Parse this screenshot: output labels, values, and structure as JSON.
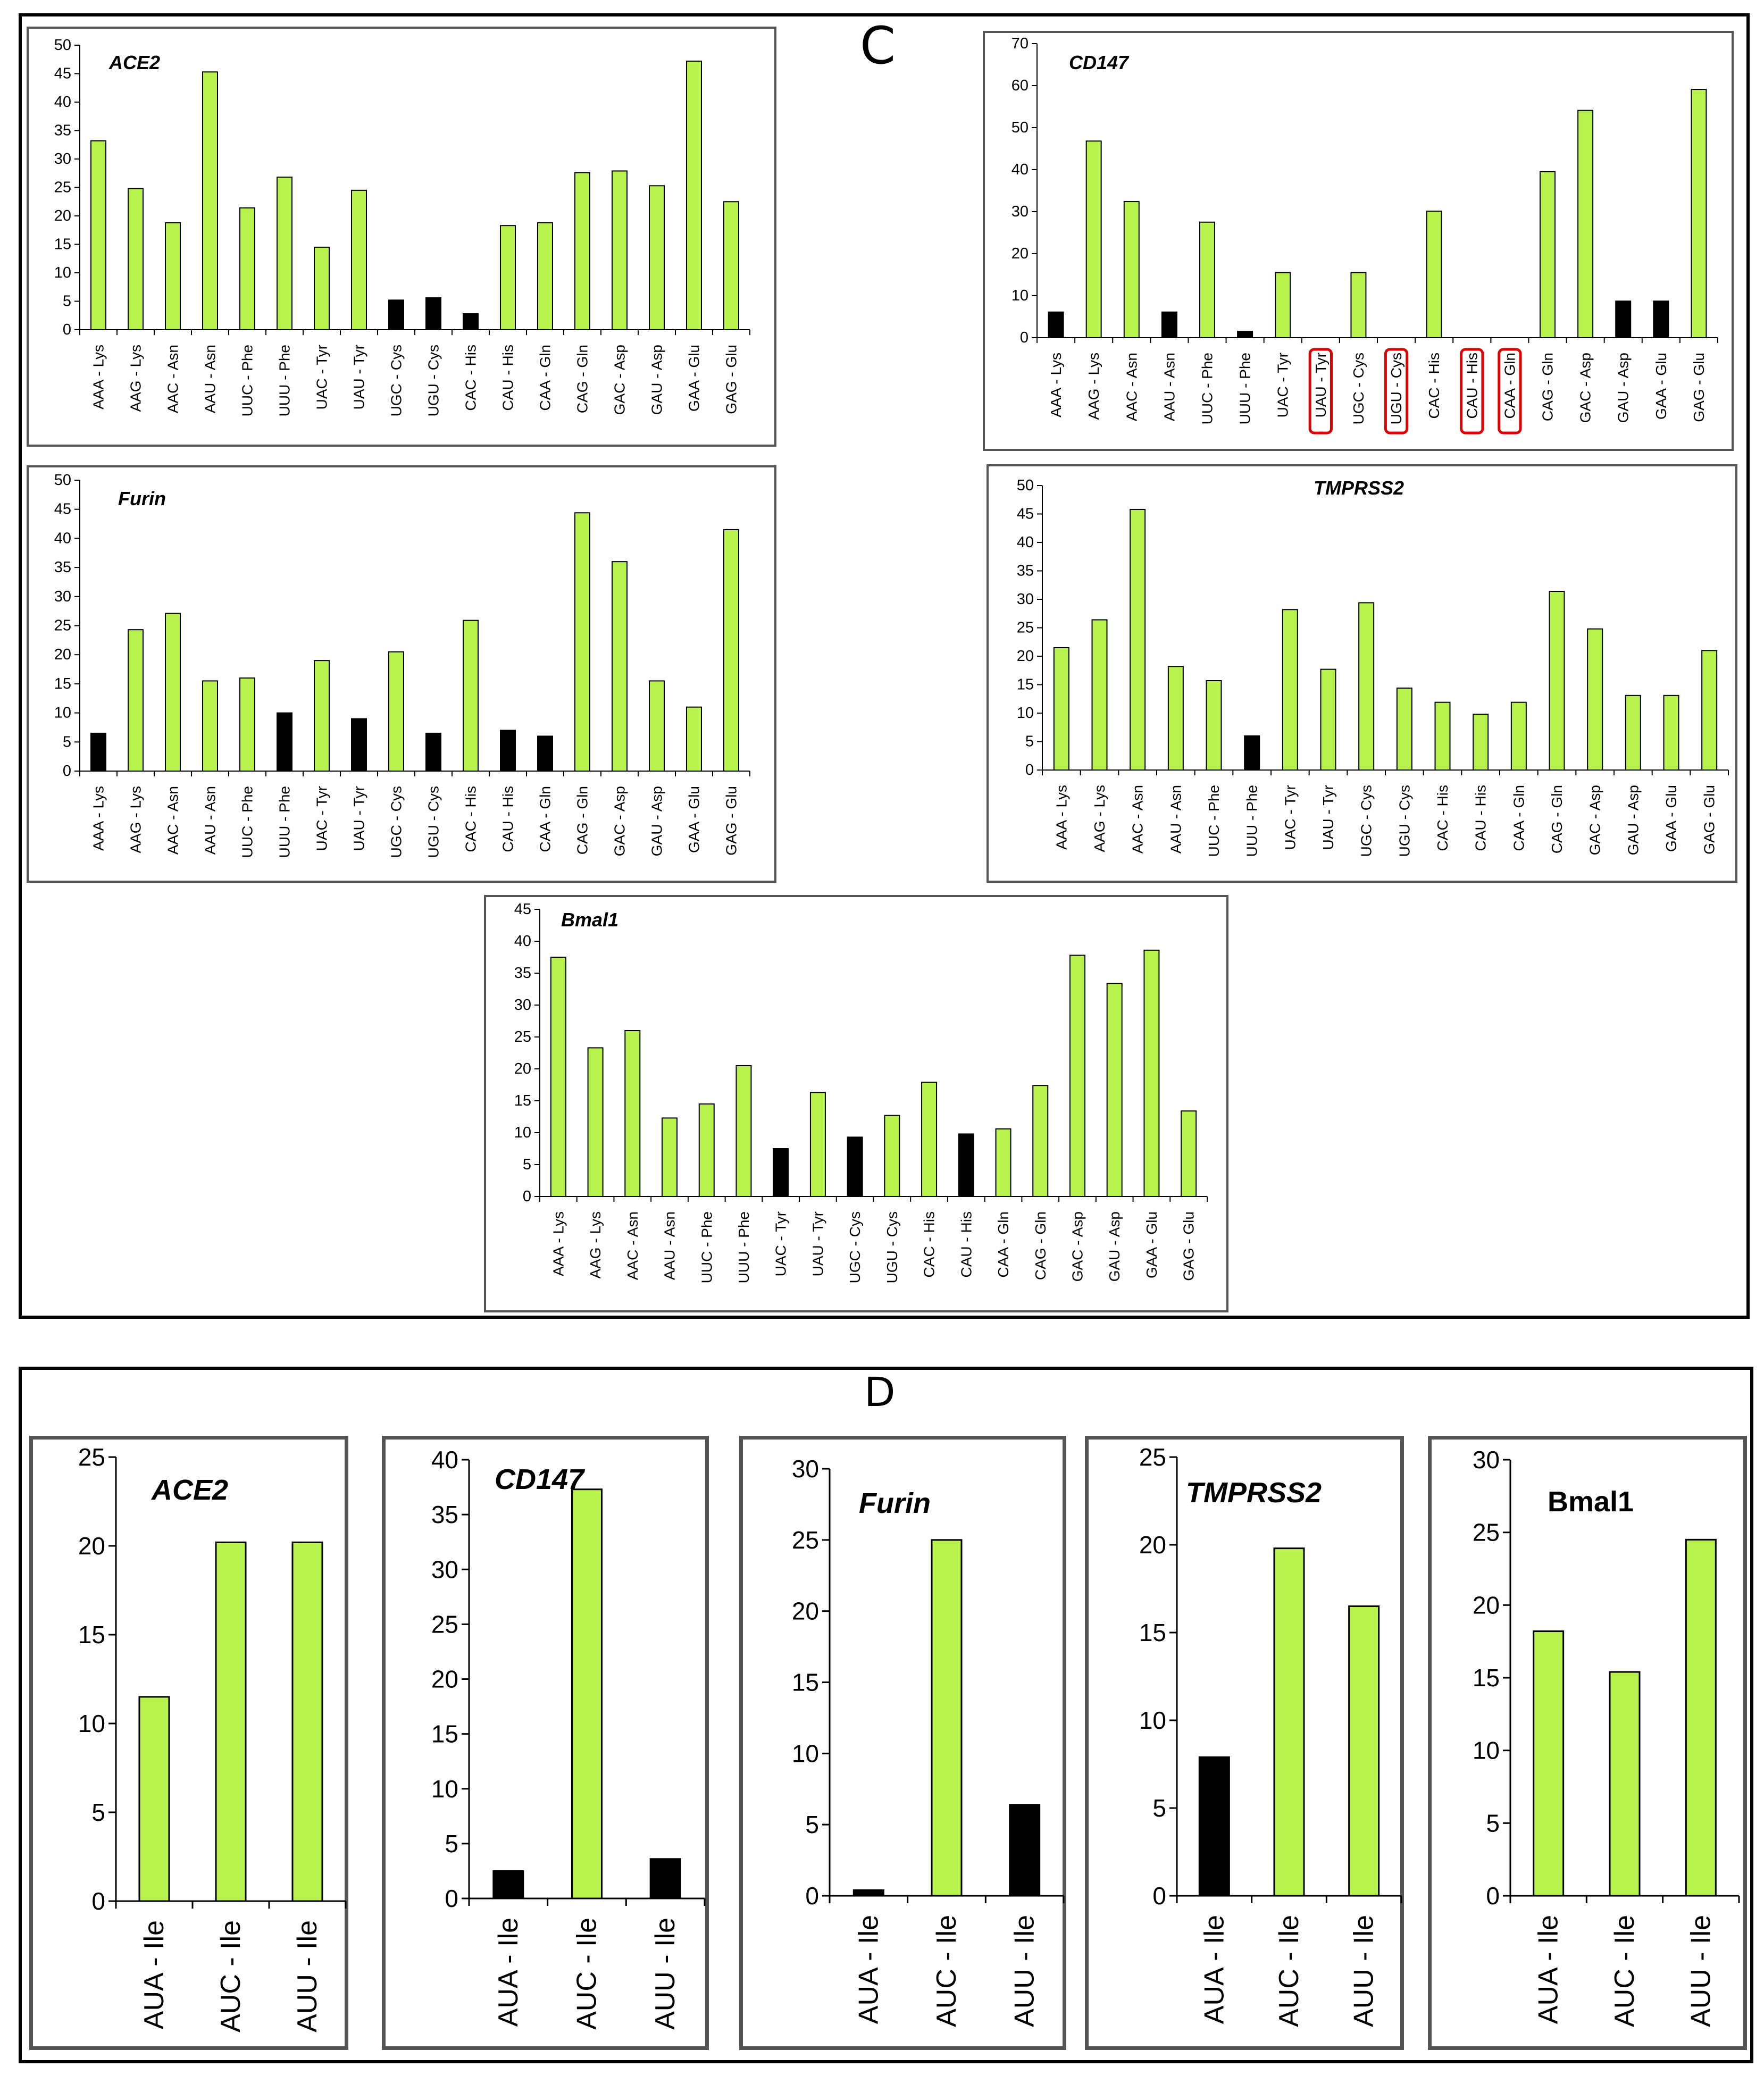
{
  "panel_labels": {
    "c": "C",
    "d": "D"
  },
  "colors": {
    "green": "#b8f24c",
    "black": "#000000",
    "highlight": "#e00000",
    "box_border": "#555555"
  },
  "chart_data": [
    {
      "id": "c1",
      "type": "bar",
      "title": "ACE2",
      "categories": [
        "AAA - Lys",
        "AAG - Lys",
        "AAC - Asn",
        "AAU - Asn",
        "UUC - Phe",
        "UUU - Phe",
        "UAC - Tyr",
        "UAU - Tyr",
        "UGC - Cys",
        "UGU - Cys",
        "CAC - His",
        "CAU - His",
        "CAA - Gln",
        "CAG - Gln",
        "GAC - Asp",
        "GAU - Asp",
        "GAA - Glu",
        "GAG - Glu"
      ],
      "values": [
        33.2,
        24.8,
        18.8,
        45.3,
        21.4,
        26.8,
        14.5,
        24.5,
        5.2,
        5.6,
        2.8,
        18.3,
        18.8,
        27.6,
        27.9,
        25.3,
        47.2,
        22.5
      ],
      "colors": [
        "green",
        "green",
        "green",
        "green",
        "green",
        "green",
        "green",
        "green",
        "black",
        "black",
        "black",
        "green",
        "green",
        "green",
        "green",
        "green",
        "green",
        "green"
      ],
      "ylim": [
        0,
        50
      ],
      "ticks": [
        0,
        5,
        10,
        15,
        20,
        25,
        30,
        35,
        40,
        45,
        50
      ]
    },
    {
      "id": "c2",
      "type": "bar",
      "title": "CD147",
      "categories": [
        "AAA - Lys",
        "AAG - Lys",
        "AAC - Asn",
        "AAU - Asn",
        "UUC - Phe",
        "UUU - Phe",
        "UAC - Tyr",
        "UAU - Tyr",
        "UGC - Cys",
        "UGU - Cys",
        "CAC - His",
        "CAU - His",
        "CAA - Gln",
        "CAG - Gln",
        "GAC - Asp",
        "GAU - Asp",
        "GAA - Glu",
        "GAG - Glu"
      ],
      "values": [
        6.1,
        46.8,
        32.4,
        6.1,
        27.5,
        1.5,
        15.5,
        0,
        15.5,
        0,
        30.1,
        0,
        0,
        39.5,
        54.1,
        8.7,
        8.7,
        59.1
      ],
      "colors": [
        "black",
        "green",
        "green",
        "black",
        "green",
        "black",
        "green",
        "green",
        "green",
        "green",
        "green",
        "green",
        "green",
        "green",
        "green",
        "black",
        "black",
        "green"
      ],
      "highlighted": [
        "UAU - Tyr",
        "UGU - Cys",
        "CAU - His",
        "CAA - Gln"
      ],
      "ylim": [
        0,
        70
      ],
      "ticks": [
        0,
        10,
        20,
        30,
        40,
        50,
        60,
        70
      ]
    },
    {
      "id": "c3",
      "type": "bar",
      "title": "Furin",
      "categories": [
        "AAA - Lys",
        "AAG - Lys",
        "AAC - Asn",
        "AAU - Asn",
        "UUC - Phe",
        "UUU - Phe",
        "UAC - Tyr",
        "UAU - Tyr",
        "UGC - Cys",
        "UGU - Cys",
        "CAC - His",
        "CAU - His",
        "CAA - Gln",
        "CAG - Gln",
        "GAC - Asp",
        "GAU - Asp",
        "GAA - Glu",
        "GAG - Glu"
      ],
      "values": [
        6.5,
        24.3,
        27.1,
        15.5,
        16,
        10,
        19,
        9,
        20.5,
        6.5,
        25.9,
        7,
        6,
        44.4,
        36,
        15.5,
        11,
        41.5
      ],
      "colors": [
        "black",
        "green",
        "green",
        "green",
        "green",
        "black",
        "green",
        "black",
        "green",
        "black",
        "green",
        "black",
        "black",
        "green",
        "green",
        "green",
        "green",
        "green"
      ],
      "ylim": [
        0,
        50
      ],
      "ticks": [
        0,
        5,
        10,
        15,
        20,
        25,
        30,
        35,
        40,
        45,
        50
      ]
    },
    {
      "id": "c4",
      "type": "bar",
      "title": "TMPRSS2",
      "categories": [
        "AAA - Lys",
        "AAG - Lys",
        "AAC - Asn",
        "AAU - Asn",
        "UUC - Phe",
        "UUU - Phe",
        "UAC - Tyr",
        "UAU - Tyr",
        "UGC - Cys",
        "UGU - Cys",
        "CAC - His",
        "CAU - His",
        "CAA - Gln",
        "CAG - Gln",
        "GAC - Asp",
        "GAU - Asp",
        "GAA - Glu",
        "GAG - Glu"
      ],
      "values": [
        21.5,
        26.4,
        45.8,
        18.2,
        15.7,
        6,
        28.2,
        17.7,
        29.4,
        14.4,
        11.9,
        9.8,
        11.9,
        31.4,
        24.8,
        13.1,
        13.1,
        21
      ],
      "colors": [
        "green",
        "green",
        "green",
        "green",
        "green",
        "black",
        "green",
        "green",
        "green",
        "green",
        "green",
        "green",
        "green",
        "green",
        "green",
        "green",
        "green",
        "green"
      ],
      "ylim": [
        0,
        50
      ],
      "ticks": [
        0,
        5,
        10,
        15,
        20,
        25,
        30,
        35,
        40,
        45,
        50
      ]
    },
    {
      "id": "c5",
      "type": "bar",
      "title": "Bmal1",
      "categories": [
        "AAA - Lys",
        "AAG - Lys",
        "AAC - Asn",
        "AAU - Asn",
        "UUC - Phe",
        "UUU - Phe",
        "UAC - Tyr",
        "UAU - Tyr",
        "UGC - Cys",
        "UGU - Cys",
        "CAC - His",
        "CAU - His",
        "CAA - Gln",
        "CAG - Gln",
        "GAC - Asp",
        "GAU - Asp",
        "GAA - Glu",
        "GAG - Glu"
      ],
      "values": [
        37.5,
        23.3,
        26,
        12.3,
        14.5,
        20.5,
        7.5,
        16.3,
        9.3,
        12.7,
        17.9,
        9.8,
        10.6,
        17.4,
        37.8,
        33.4,
        38.6,
        13.4
      ],
      "colors": [
        "green",
        "green",
        "green",
        "green",
        "green",
        "green",
        "black",
        "green",
        "black",
        "green",
        "green",
        "black",
        "green",
        "green",
        "green",
        "green",
        "green",
        "green"
      ],
      "ylim": [
        0,
        45
      ],
      "ticks": [
        0,
        5,
        10,
        15,
        20,
        25,
        30,
        35,
        40,
        45
      ]
    },
    {
      "id": "d1",
      "type": "bar",
      "title": "ACE2",
      "categories": [
        "AUA - Ile",
        "AUC - Ile",
        "AUU - Ile"
      ],
      "values": [
        11.5,
        20.2,
        20.2
      ],
      "colors": [
        "green",
        "green",
        "green"
      ],
      "ylim": [
        0,
        25
      ],
      "ticks": [
        0,
        5,
        10,
        15,
        20,
        25
      ]
    },
    {
      "id": "d2",
      "type": "bar",
      "title": "CD147",
      "categories": [
        "AUA - Ile",
        "AUC - Ile",
        "AUU - Ile"
      ],
      "values": [
        2.5,
        37.3,
        3.6
      ],
      "colors": [
        "black",
        "green",
        "black"
      ],
      "ylim": [
        0,
        40
      ],
      "ticks": [
        0,
        5,
        10,
        15,
        20,
        25,
        30,
        35,
        40
      ]
    },
    {
      "id": "d3",
      "type": "bar",
      "title": "Furin",
      "categories": [
        "AUA - Ile",
        "AUC - Ile",
        "AUU - Ile"
      ],
      "values": [
        0.4,
        25,
        6.4
      ],
      "colors": [
        "black",
        "green",
        "black"
      ],
      "ylim": [
        0,
        30
      ],
      "ticks": [
        0,
        5,
        10,
        15,
        20,
        25,
        30
      ]
    },
    {
      "id": "d4",
      "type": "bar",
      "title": "TMPRSS2",
      "categories": [
        "AUA - Ile",
        "AUC - Ile",
        "AUU - Ile"
      ],
      "values": [
        7.9,
        19.8,
        16.5
      ],
      "colors": [
        "black",
        "green",
        "green"
      ],
      "ylim": [
        0,
        25
      ],
      "ticks": [
        0,
        5,
        10,
        15,
        20,
        25
      ]
    },
    {
      "id": "d5",
      "type": "bar",
      "title": "Bmal1",
      "categories": [
        "AUA - Ile",
        "AUC - Ile",
        "AUU - Ile"
      ],
      "values": [
        18.2,
        15.4,
        24.5
      ],
      "colors": [
        "green",
        "green",
        "green"
      ],
      "ylim": [
        0,
        30
      ],
      "ticks": [
        0,
        5,
        10,
        15,
        20,
        25,
        30
      ]
    }
  ]
}
